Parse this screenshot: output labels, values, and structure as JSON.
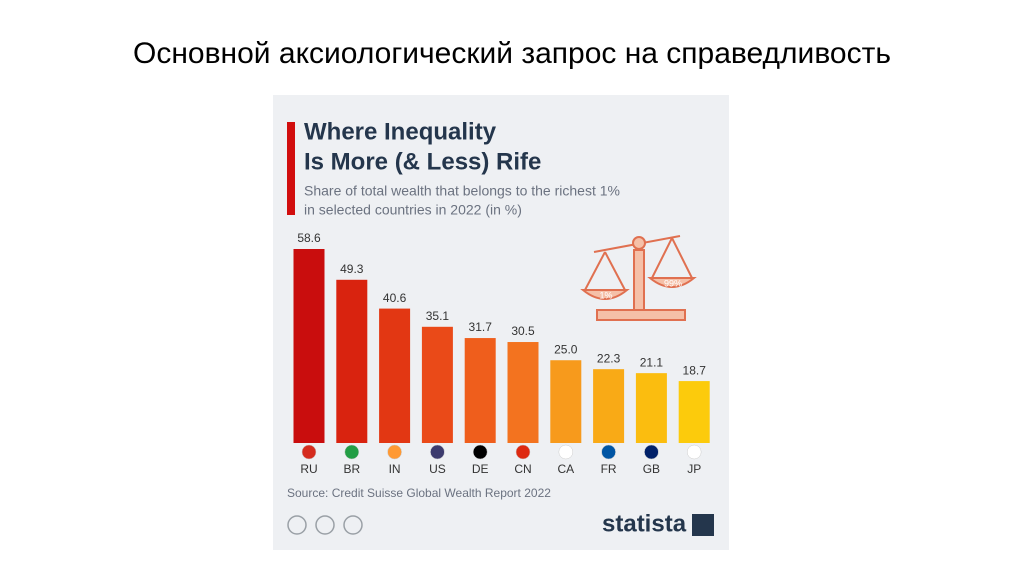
{
  "slide_title": "Основной аксиологический запрос на справедливость",
  "chart_data": {
    "type": "bar",
    "title": [
      "Where Inequality",
      "Is More (& Less) Rife"
    ],
    "subtitle": [
      "Share of total wealth that belongs to the richest 1%",
      "in selected countries in 2022 (in %)"
    ],
    "categories": [
      "RU",
      "BR",
      "IN",
      "US",
      "DE",
      "CN",
      "CA",
      "FR",
      "GB",
      "JP"
    ],
    "values": [
      58.6,
      49.3,
      40.6,
      35.1,
      31.7,
      30.5,
      25.0,
      22.3,
      21.1,
      18.7
    ],
    "value_labels": [
      "58.6",
      "49.3",
      "40.6",
      "35.1",
      "31.7",
      "30.5",
      "25.0",
      "22.3",
      "21.1",
      "18.7"
    ],
    "colors": [
      "#c90d0d",
      "#d9230f",
      "#e23713",
      "#ea4a18",
      "#ef5e1c",
      "#f3731f",
      "#f79a1c",
      "#f9aa16",
      "#fbbd0f",
      "#fccb0c"
    ],
    "source": "Source: Credit Suisse Global Wealth Report 2022",
    "brand": "statista",
    "illustration_labels": [
      "1%",
      "99%"
    ]
  }
}
